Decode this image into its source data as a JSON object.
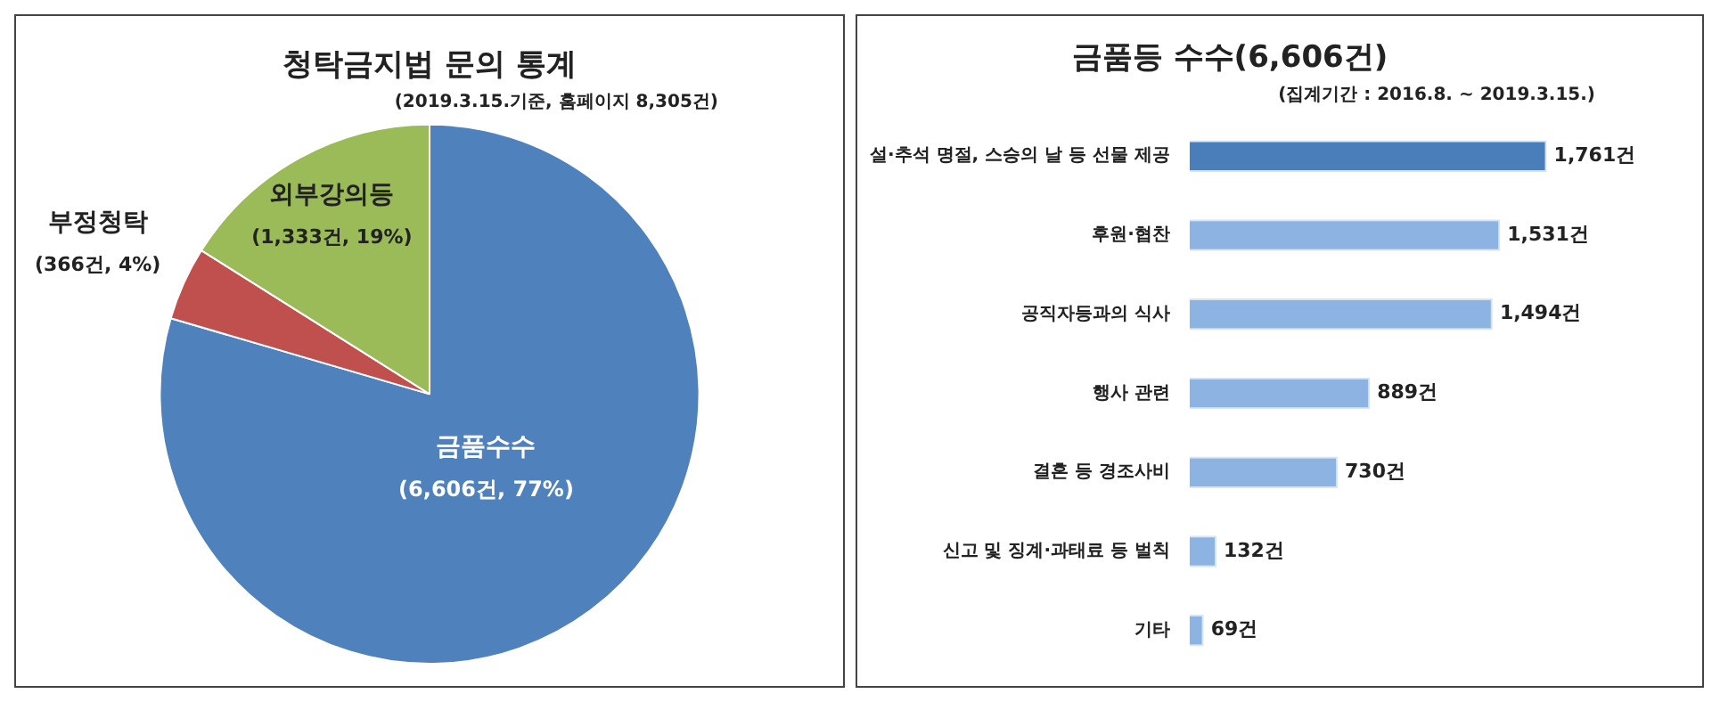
{
  "chart_data": [
    {
      "type": "pie",
      "title": "청탁금지법 문의 통계",
      "subtitle": "(2019.3.15.기준, 홈페이지 8,305건)",
      "categories": [
        "금품수수",
        "부정청탁",
        "외부강의등"
      ],
      "values": [
        6606,
        366,
        1333
      ],
      "value_labels": [
        "(6,606건, 77%)",
        "(366건, 4%)",
        "(1,333건, 19%)"
      ],
      "colors": [
        "#4f81bd",
        "#c0504d",
        "#9bbb59"
      ],
      "legend": false
    },
    {
      "type": "bar",
      "orientation": "horizontal",
      "title": "금품등 수수(6,606건)",
      "subtitle": "(집계기간 : 2016.8. ~ 2019.3.15.)",
      "categories": [
        "설·추석 명절, 스승의 날 등 선물 제공",
        "후원·협찬",
        "공직자등과의 식사",
        "행사 관련",
        "결혼 등 경조사비",
        "신고 및 징계·과태료 등 벌칙",
        "기타"
      ],
      "values": [
        1761,
        1531,
        1494,
        889,
        730,
        132,
        69
      ],
      "value_labels": [
        "1,761건",
        "1,531건",
        "1,494건",
        "889건",
        "730건",
        "132건",
        "69건"
      ],
      "colors": [
        "#4a7ebb",
        "#8db3e2",
        "#8db3e2",
        "#8db3e2",
        "#8db3e2",
        "#8db3e2",
        "#8db3e2"
      ],
      "legend": false
    }
  ]
}
